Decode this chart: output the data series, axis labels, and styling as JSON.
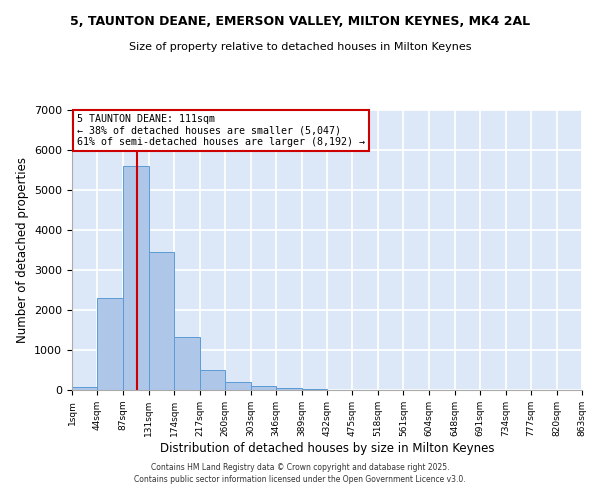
{
  "title1": "5, TAUNTON DEANE, EMERSON VALLEY, MILTON KEYNES, MK4 2AL",
  "title2": "Size of property relative to detached houses in Milton Keynes",
  "xlabel": "Distribution of detached houses by size in Milton Keynes",
  "ylabel": "Number of detached properties",
  "bar_color": "#aec6e8",
  "bar_edgecolor": "#5b9bd5",
  "background_color": "#dce8f8",
  "grid_color": "#ffffff",
  "bins": [
    1,
    44,
    87,
    131,
    174,
    217,
    260,
    303,
    346,
    389,
    432,
    475,
    518,
    561,
    604,
    648,
    691,
    734,
    777,
    820,
    863
  ],
  "bin_labels": [
    "1sqm",
    "44sqm",
    "87sqm",
    "131sqm",
    "174sqm",
    "217sqm",
    "260sqm",
    "303sqm",
    "346sqm",
    "389sqm",
    "432sqm",
    "475sqm",
    "518sqm",
    "561sqm",
    "604sqm",
    "648sqm",
    "691sqm",
    "734sqm",
    "777sqm",
    "820sqm",
    "863sqm"
  ],
  "values": [
    80,
    2300,
    5600,
    3450,
    1320,
    490,
    190,
    100,
    60,
    30,
    0,
    0,
    0,
    0,
    0,
    0,
    0,
    0,
    0,
    0
  ],
  "vline_x": 111,
  "vline_color": "#cc0000",
  "annotation_text": "5 TAUNTON DEANE: 111sqm\n← 38% of detached houses are smaller (5,047)\n61% of semi-detached houses are larger (8,192) →",
  "annotation_box_color": "#ffffff",
  "annotation_box_edgecolor": "#cc0000",
  "ylim": [
    0,
    7000
  ],
  "yticks": [
    0,
    1000,
    2000,
    3000,
    4000,
    5000,
    6000,
    7000
  ],
  "footnote1": "Contains HM Land Registry data © Crown copyright and database right 2025.",
  "footnote2": "Contains public sector information licensed under the Open Government Licence v3.0."
}
